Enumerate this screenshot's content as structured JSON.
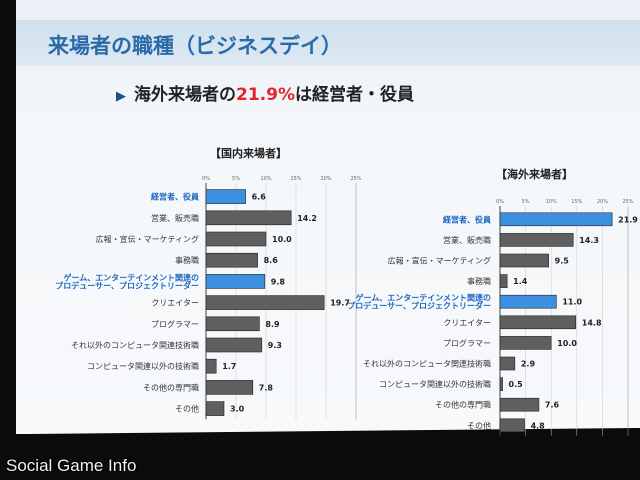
{
  "slide": {
    "title": "来場者の職種（ビジネスデイ）",
    "headline_prefix": "海外来場者の",
    "headline_highlight": "21.9%",
    "headline_suffix": "は経営者・役員",
    "arrow_icon": "triangle-right-icon",
    "highlight_color": "#e2262d",
    "title_color": "#2a6aa8"
  },
  "watermark": "Social Game Info",
  "chart_data": [
    {
      "type": "bar",
      "orientation": "horizontal",
      "title": "【国内来場者】",
      "categories": [
        "経営者、役員",
        "営業、販売職",
        "広報・宣伝・マーケティング",
        "事務職",
        "ゲーム、エンターテインメント関連の プロデューサー、プロジェクトリーダー",
        "クリエイター",
        "プログラマー",
        "それ以外のコンピュータ関連技術職",
        "コンピュータ関連以外の技術職",
        "その他の専門職",
        "その他"
      ],
      "values": [
        6.6,
        14.2,
        10.0,
        8.6,
        9.8,
        19.7,
        8.9,
        9.3,
        1.7,
        7.8,
        3.0
      ],
      "value_labels": [
        "6.6",
        "14.2",
        "10.0",
        "8.6",
        "9.8",
        "19.7",
        "8.9",
        "9.3",
        "1.7",
        "7.8",
        "3.0"
      ],
      "highlighted": [
        0,
        4
      ],
      "xlim": [
        0,
        25
      ],
      "xticks": [
        "0%",
        "5%",
        "10%",
        "15%",
        "20%",
        "25%"
      ],
      "colors": {
        "bar": "#5f5f5f",
        "highlight": "#3d8fe0"
      }
    },
    {
      "type": "bar",
      "orientation": "horizontal",
      "title": "【海外来場者】",
      "categories": [
        "経営者、役員",
        "営業、販売職",
        "広報・宣伝・マーケティング",
        "事務職",
        "ゲーム、エンターテインメント関連の プロデューサー、プロジェクトリーダー",
        "クリエイター",
        "プログラマー",
        "それ以外のコンピュータ関連技術職",
        "コンピュータ関連以外の技術職",
        "その他の専門職",
        "その他"
      ],
      "values": [
        21.9,
        14.3,
        9.5,
        1.4,
        11.0,
        14.8,
        10.0,
        2.9,
        0.5,
        7.6,
        4.8
      ],
      "value_labels": [
        "21.9",
        "14.3",
        "9.5",
        "1.4",
        "11.0",
        "14.8",
        "10.0",
        "2.9",
        "0.5",
        "7.6",
        "4.8"
      ],
      "highlighted": [
        0,
        4
      ],
      "xlim": [
        0,
        25
      ],
      "xticks": [
        "0%",
        "5%",
        "10%",
        "15%",
        "20%",
        "25%"
      ],
      "colors": {
        "bar": "#5f5f5f",
        "highlight": "#3d8fe0"
      }
    }
  ]
}
